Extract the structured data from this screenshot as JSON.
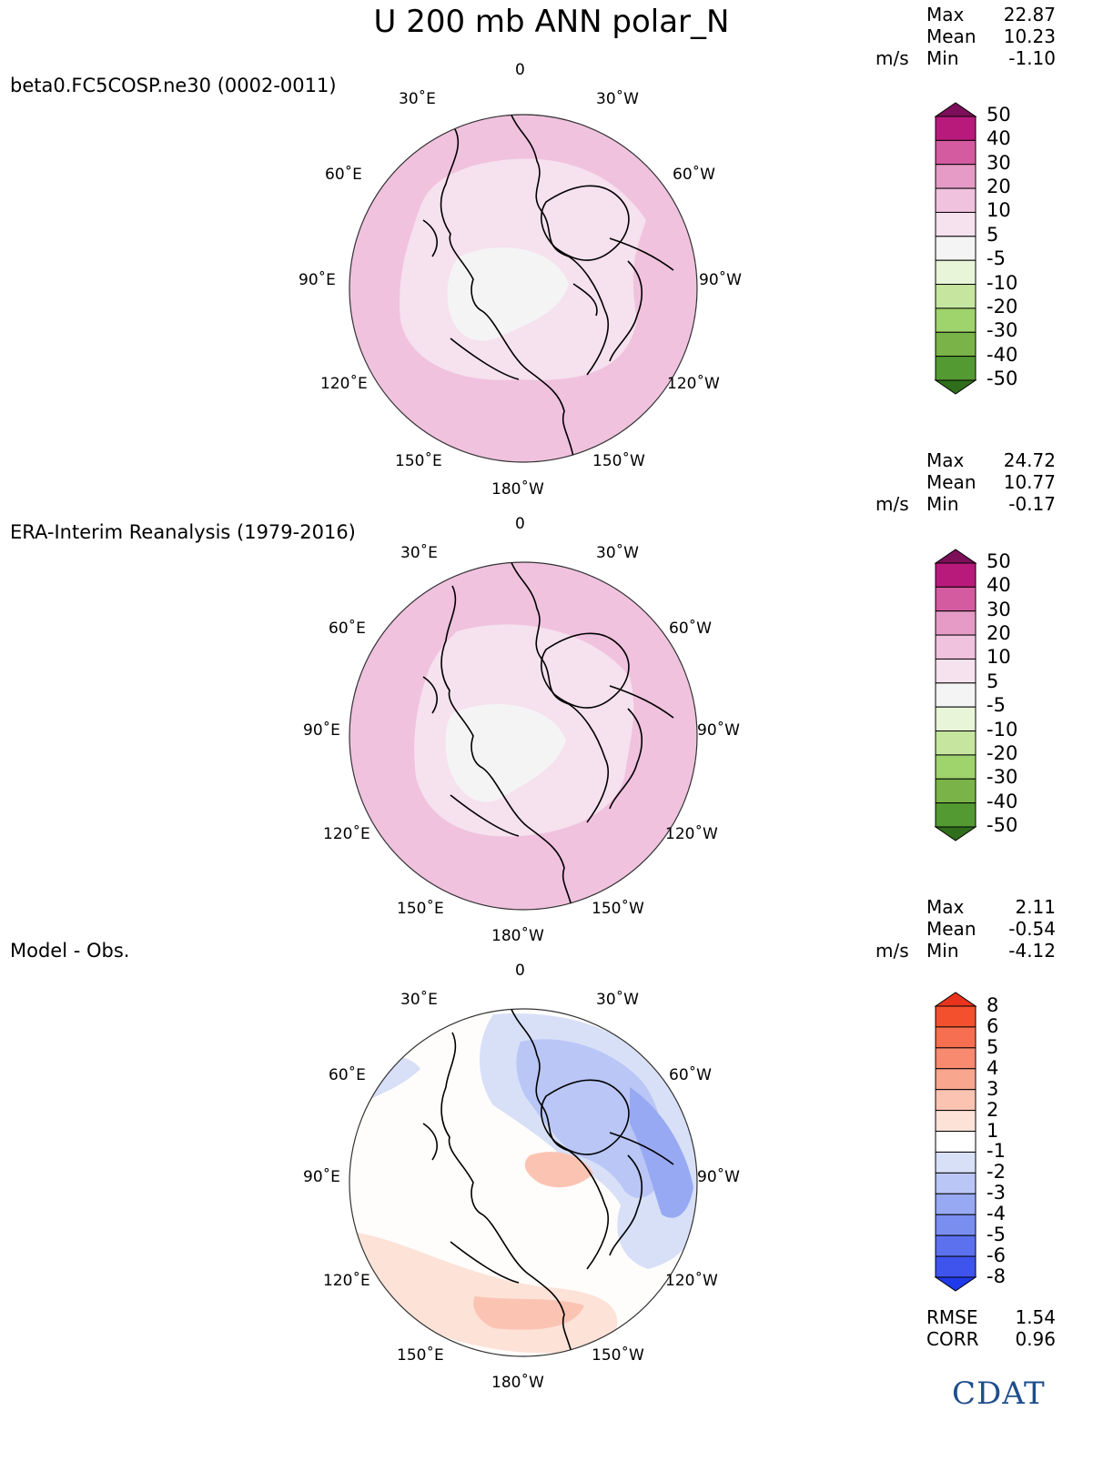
{
  "title": "U 200 mb ANN polar_N",
  "panels": [
    {
      "name": "beta0.FC5COSP.ne30 (0002-0011)",
      "stats": {
        "unit": "m/s",
        "max_label": "Max",
        "mean_label": "Mean",
        "min_label": "Min",
        "max": "22.87",
        "mean": "10.23",
        "min": "-1.10"
      },
      "colorbar": {
        "levels": [
          "50",
          "40",
          "30",
          "20",
          "10",
          "5",
          "-5",
          "-10",
          "-20",
          "-30",
          "-40",
          "-50"
        ],
        "colors": [
          "#7d0f5a",
          "#b81a7c",
          "#d45ba0",
          "#e59bc6",
          "#f0c2de",
          "#f6e1ee",
          "#f4f4f4",
          "#e8f5d8",
          "#c6e6a0",
          "#9fd36c",
          "#7ab448",
          "#549a32",
          "#2f6e1b"
        ]
      }
    },
    {
      "name": "ERA-Interim Reanalysis (1979-2016)",
      "stats": {
        "unit": "m/s",
        "max_label": "Max",
        "mean_label": "Mean",
        "min_label": "Min",
        "max": "24.72",
        "mean": "10.77",
        "min": "-0.17"
      },
      "colorbar": {
        "levels": [
          "50",
          "40",
          "30",
          "20",
          "10",
          "5",
          "-5",
          "-10",
          "-20",
          "-30",
          "-40",
          "-50"
        ],
        "colors": [
          "#7d0f5a",
          "#b81a7c",
          "#d45ba0",
          "#e59bc6",
          "#f0c2de",
          "#f6e1ee",
          "#f4f4f4",
          "#e8f5d8",
          "#c6e6a0",
          "#9fd36c",
          "#7ab448",
          "#549a32",
          "#2f6e1b"
        ]
      }
    },
    {
      "name": "Model - Obs.",
      "stats": {
        "unit": "m/s",
        "max_label": "Max",
        "mean_label": "Mean",
        "min_label": "Min",
        "max": "2.11",
        "mean": "-0.54",
        "min": "-4.12"
      },
      "colorbar": {
        "levels": [
          "8",
          "6",
          "5",
          "4",
          "3",
          "2",
          "1",
          "-1",
          "-2",
          "-3",
          "-4",
          "-5",
          "-6",
          "-8"
        ],
        "colors": [
          "#e8341c",
          "#f3512e",
          "#f66f50",
          "#f88a70",
          "#f9a68f",
          "#fbc4b2",
          "#fde2d8",
          "#ffffff",
          "#d8e0f8",
          "#b9c6f6",
          "#98a9f3",
          "#7a8ef0",
          "#5c71ee",
          "#3e54ec",
          "#1f3ae8"
        ]
      },
      "rmse_label": "RMSE",
      "rmse": "1.54",
      "corr_label": "CORR",
      "corr": "0.96"
    }
  ],
  "map_labels": {
    "top": "0",
    "lon_30e": "30˚E",
    "lon_30w": "30˚W",
    "lon_60e": "60˚E",
    "lon_60w": "60˚W",
    "lon_90e": "90˚E",
    "lon_90w": "90˚W",
    "lon_120e": "120˚E",
    "lon_120w": "120˚W",
    "lon_150e": "150˚E",
    "lon_150w": "150˚W",
    "bottom": "180˚W"
  },
  "logo": {
    "text": "CDAT"
  }
}
